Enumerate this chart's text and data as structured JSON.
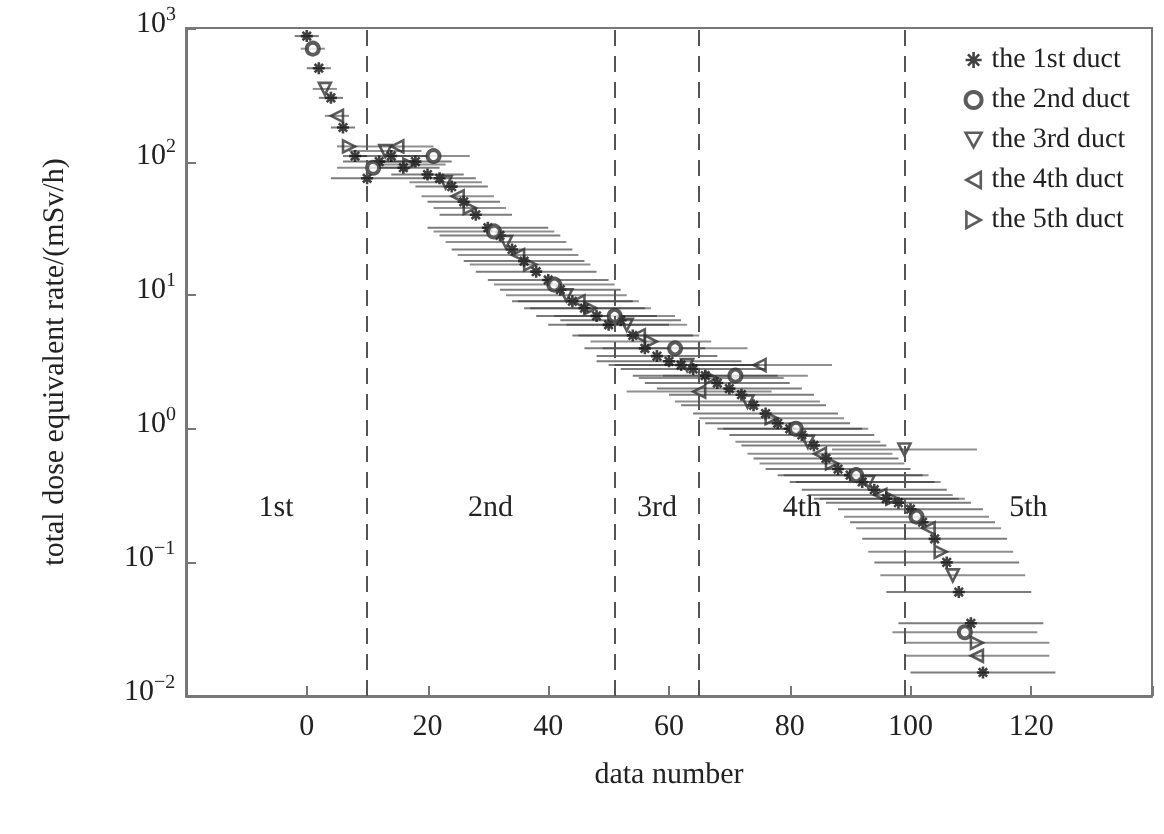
{
  "chart_data": {
    "type": "scatter",
    "xlabel": "data number",
    "ylabel": "total dose equivalent rate/(mSv/h)",
    "xlim": [
      -20,
      140
    ],
    "xticks": [
      {
        "value": -20,
        "label": null
      },
      0,
      20,
      40,
      60,
      80,
      100,
      120,
      {
        "value": 140,
        "label": null
      }
    ],
    "ylim": [
      0.01,
      1000
    ],
    "log": "y",
    "yticks": [
      {
        "value": 0.01,
        "label": "10$^{−2}$"
      },
      {
        "value": 0.1,
        "label": "10$^{−1}$"
      },
      {
        "value": 1,
        "label": "10$^{0}$"
      },
      {
        "value": 10,
        "label": "10$^{1}$"
      },
      {
        "value": 100,
        "label": "10$^{2}$"
      },
      {
        "value": 1000,
        "label": "10$^{3}$"
      }
    ],
    "grid": false,
    "legend": "top right",
    "series": [
      {
        "name": "the 1st duct",
        "color": "#111111",
        "marker": "cross",
        "x": [
          0,
          2,
          4,
          6,
          8,
          10,
          12,
          14,
          16,
          18,
          20,
          22,
          24,
          26,
          28,
          30,
          32,
          34,
          36,
          38,
          40,
          42,
          44,
          46,
          48,
          50,
          52,
          54,
          56,
          58,
          60,
          62,
          64,
          66,
          68,
          70,
          72,
          74,
          76,
          78,
          80,
          82,
          84,
          86,
          88,
          90,
          92,
          94,
          96,
          98,
          100,
          102,
          104,
          106,
          108,
          110,
          112
        ],
        "values": [
          870,
          500,
          300,
          180,
          110,
          75,
          100,
          110,
          90,
          100,
          80,
          75,
          65,
          50,
          40,
          32,
          28,
          22,
          18,
          15,
          13,
          11,
          9,
          8,
          7,
          6,
          6.5,
          5,
          4,
          3.5,
          3.2,
          3,
          2.8,
          2.5,
          2.2,
          2,
          1.8,
          1.5,
          1.3,
          1.1,
          1,
          0.9,
          0.75,
          0.6,
          0.5,
          0.45,
          0.4,
          0.35,
          0.3,
          0.28,
          0.25,
          0.2,
          0.15,
          0.1,
          0.06,
          0.035,
          0.015
        ],
        "xerrors": [
          2,
          2,
          2,
          2,
          2,
          6,
          6,
          6,
          6,
          6,
          6,
          6,
          6,
          6,
          6,
          10,
          10,
          10,
          10,
          10,
          10,
          10,
          10,
          10,
          10,
          10,
          10,
          10,
          10,
          10,
          12,
          12,
          12,
          12,
          12,
          12,
          12,
          12,
          12,
          12,
          12,
          12,
          12,
          12,
          12,
          12,
          12,
          12,
          12,
          12,
          12,
          12,
          12,
          12,
          12,
          12,
          12
        ]
      },
      {
        "name": "the 2nd duct",
        "color": "#333333",
        "marker": "circle",
        "x": [
          1,
          11,
          21,
          31,
          41,
          51,
          61,
          71,
          81,
          91,
          101,
          109
        ],
        "values": [
          700,
          90,
          110,
          30,
          12,
          7,
          4,
          2.5,
          1,
          0.45,
          0.22,
          0.03
        ],
        "xerrors": [
          2,
          6,
          6,
          10,
          10,
          10,
          12,
          12,
          12,
          12,
          12,
          12
        ]
      },
      {
        "name": "the 3rd duct",
        "color": "#333333",
        "marker": "triangle-down",
        "x": [
          3,
          13,
          23,
          33,
          43,
          53,
          63,
          73,
          83,
          93,
          99,
          107
        ],
        "values": [
          350,
          120,
          70,
          25,
          10,
          6,
          3,
          1.6,
          0.8,
          0.4,
          0.7,
          0.08
        ],
        "xerrors": [
          2,
          6,
          6,
          10,
          10,
          10,
          12,
          12,
          12,
          12,
          12,
          12
        ]
      },
      {
        "name": "the 4th duct",
        "color": "#333333",
        "marker": "triangle-left",
        "x": [
          5,
          15,
          25,
          35,
          45,
          55,
          65,
          75,
          85,
          95,
          103,
          111
        ],
        "values": [
          220,
          130,
          55,
          20,
          9,
          5,
          1.9,
          3,
          0.65,
          0.32,
          0.18,
          0.02
        ],
        "xerrors": [
          2,
          6,
          6,
          10,
          10,
          10,
          12,
          12,
          12,
          12,
          12,
          12
        ]
      },
      {
        "name": "the 5th duct",
        "color": "#333333",
        "marker": "triangle-right",
        "x": [
          7,
          17,
          27,
          37,
          47,
          57,
          67,
          77,
          87,
          97,
          105,
          111
        ],
        "values": [
          130,
          95,
          45,
          17,
          8,
          4.5,
          2.4,
          1.2,
          0.55,
          0.3,
          0.12,
          0.025
        ],
        "xerrors": [
          2,
          6,
          6,
          10,
          10,
          10,
          12,
          12,
          12,
          12,
          12,
          12
        ]
      }
    ],
    "ref_lines": [
      {
        "axis": "x",
        "value": 10,
        "line_style": "dashed",
        "color": "#555555"
      },
      {
        "axis": "x",
        "value": 51,
        "line_style": "dashed",
        "color": "#555555"
      },
      {
        "axis": "x",
        "value": 65,
        "line_style": "dashed",
        "color": "#555555"
      },
      {
        "axis": "x",
        "value": 99,
        "line_style": "dashed",
        "color": "#555555"
      }
    ],
    "annotations": [
      "1st",
      "2nd",
      "3rd",
      "4th",
      "5th"
    ]
  }
}
